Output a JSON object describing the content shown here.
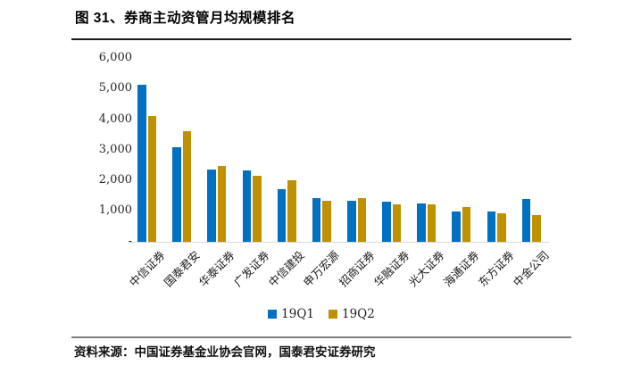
{
  "header": {
    "title": "图 31、券商主动资管月均规模排名"
  },
  "chart_data": {
    "type": "bar",
    "title": "券商主动资管月均规模排名",
    "categories": [
      "中信证券",
      "国泰君安",
      "华泰证券",
      "广发证券",
      "中信建投",
      "申万宏源",
      "招商证券",
      "华融证券",
      "光大证券",
      "海通证券",
      "东方证券",
      "中金公司"
    ],
    "series": [
      {
        "name": "19Q1",
        "color": "#0070C0",
        "values": [
          5130,
          3070,
          2340,
          2320,
          1710,
          1410,
          1320,
          1290,
          1230,
          990,
          990,
          1380
        ]
      },
      {
        "name": "19Q2",
        "color": "#BF9000",
        "values": [
          4090,
          3600,
          2470,
          2160,
          2000,
          1330,
          1410,
          1220,
          1200,
          1120,
          920,
          870
        ]
      }
    ],
    "xlabel": "",
    "ylabel": "",
    "ylim": [
      0,
      6000
    ],
    "yticks": [
      {
        "label": "6,000",
        "value": 6000
      },
      {
        "label": "5,000",
        "value": 5000
      },
      {
        "label": "4,000",
        "value": 4000
      },
      {
        "label": "3,000",
        "value": 3000
      },
      {
        "label": "2,000",
        "value": 2000
      },
      {
        "label": "1,000",
        "value": 1000
      },
      {
        "label": "-",
        "value": 0
      }
    ],
    "grid": false,
    "legend_position": "bottom",
    "axis_line_color": "#d9d9d9"
  },
  "footer": {
    "source": "资料来源：中国证券基金业协会官网，国泰君安证券研究"
  }
}
